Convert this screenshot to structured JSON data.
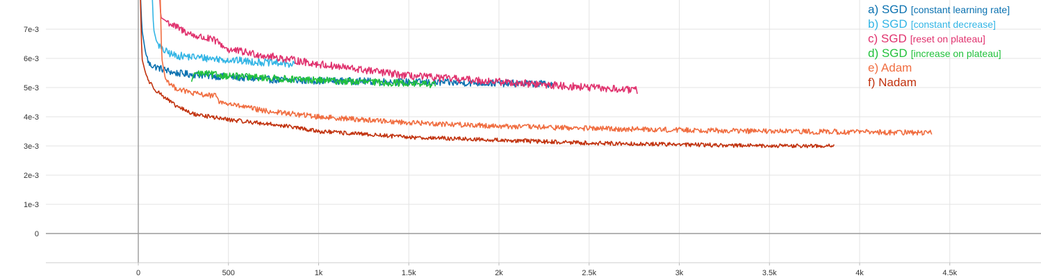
{
  "chart_data": {
    "type": "line",
    "title": "",
    "xlabel": "",
    "ylabel": "",
    "xlim": [
      -500,
      5000
    ],
    "ylim": [
      -0.001,
      0.008
    ],
    "grid": true,
    "legend_position": "top-right",
    "x_ticks": [
      {
        "value": 0,
        "label": "0"
      },
      {
        "value": 500,
        "label": "500"
      },
      {
        "value": 1000,
        "label": "1k"
      },
      {
        "value": 1500,
        "label": "1.5k"
      },
      {
        "value": 2000,
        "label": "2k"
      },
      {
        "value": 2500,
        "label": "2.5k"
      },
      {
        "value": 3000,
        "label": "3k"
      },
      {
        "value": 3500,
        "label": "3.5k"
      },
      {
        "value": 4000,
        "label": "4k"
      },
      {
        "value": 4500,
        "label": "4.5k"
      }
    ],
    "y_ticks": [
      {
        "value": 0,
        "label": "0"
      },
      {
        "value": 0.001,
        "label": "1e-3"
      },
      {
        "value": 0.002,
        "label": "2e-3"
      },
      {
        "value": 0.003,
        "label": "3e-3"
      },
      {
        "value": 0.004,
        "label": "4e-3"
      },
      {
        "value": 0.005,
        "label": "5e-3"
      },
      {
        "value": 0.006,
        "label": "6e-3"
      },
      {
        "value": 0.007,
        "label": "7e-3"
      }
    ],
    "series": [
      {
        "name": "a) SGD",
        "note": "[constant learning rate]",
        "color": "#0a71b0",
        "noise": 0.00012,
        "points": [
          [
            10,
            0.0085
          ],
          [
            20,
            0.007
          ],
          [
            40,
            0.0062
          ],
          [
            60,
            0.0058
          ],
          [
            100,
            0.0057
          ],
          [
            200,
            0.0055
          ],
          [
            400,
            0.0054
          ],
          [
            800,
            0.00525
          ],
          [
            1200,
            0.00522
          ],
          [
            1600,
            0.00518
          ],
          [
            2000,
            0.00515
          ],
          [
            2300,
            0.00512
          ]
        ]
      },
      {
        "name": "b) SGD",
        "note": "[constant decrease]",
        "color": "#33b5e5",
        "noise": 0.00013,
        "points": [
          [
            75,
            0.0085
          ],
          [
            85,
            0.007
          ],
          [
            100,
            0.0066
          ],
          [
            130,
            0.0063
          ],
          [
            200,
            0.0061
          ],
          [
            400,
            0.006
          ],
          [
            600,
            0.0059
          ],
          [
            870,
            0.0058
          ]
        ]
      },
      {
        "name": "c) SGD",
        "note": "[reset on plateau]",
        "color": "#e0326e",
        "noise": 0.00013,
        "points": [
          [
            115,
            0.0085
          ],
          [
            125,
            0.0074
          ],
          [
            200,
            0.0071
          ],
          [
            300,
            0.0068
          ],
          [
            430,
            0.0066
          ],
          [
            500,
            0.0063
          ],
          [
            1000,
            0.0058
          ],
          [
            1500,
            0.0054
          ],
          [
            2000,
            0.0052
          ],
          [
            2500,
            0.005
          ],
          [
            2770,
            0.0049
          ]
        ]
      },
      {
        "name": "d) SGD",
        "note": "[increase on plateau]",
        "color": "#22c13c",
        "noise": 0.00012,
        "points": [
          [
            295,
            0.0052
          ],
          [
            310,
            0.0055
          ],
          [
            500,
            0.0054
          ],
          [
            800,
            0.0053
          ],
          [
            1200,
            0.0052
          ],
          [
            1500,
            0.00515
          ],
          [
            1650,
            0.0051
          ]
        ]
      },
      {
        "name": "e) Adam",
        "note": "",
        "color": "#f06d40",
        "noise": 9e-05,
        "points": [
          [
            120,
            0.0085
          ],
          [
            130,
            0.006
          ],
          [
            150,
            0.0053
          ],
          [
            200,
            0.005
          ],
          [
            300,
            0.0048
          ],
          [
            440,
            0.0047
          ],
          [
            450,
            0.0045
          ],
          [
            700,
            0.0042
          ],
          [
            1000,
            0.004
          ],
          [
            1500,
            0.0038
          ],
          [
            2000,
            0.00368
          ],
          [
            2500,
            0.0036
          ],
          [
            3000,
            0.00355
          ],
          [
            3500,
            0.0035
          ],
          [
            4000,
            0.00348
          ],
          [
            4400,
            0.00345
          ]
        ]
      },
      {
        "name": "f) Nadam",
        "note": "",
        "color": "#c1320e",
        "noise": 7e-05,
        "points": [
          [
            10,
            0.0085
          ],
          [
            20,
            0.006
          ],
          [
            40,
            0.0055
          ],
          [
            60,
            0.0052
          ],
          [
            100,
            0.0049
          ],
          [
            200,
            0.0044
          ],
          [
            300,
            0.0041
          ],
          [
            500,
            0.0039
          ],
          [
            800,
            0.0037
          ],
          [
            1000,
            0.0035
          ],
          [
            1500,
            0.0033
          ],
          [
            2000,
            0.0032
          ],
          [
            2500,
            0.0031
          ],
          [
            3000,
            0.00305
          ],
          [
            3500,
            0.003
          ],
          [
            3860,
            0.003
          ]
        ]
      }
    ]
  }
}
